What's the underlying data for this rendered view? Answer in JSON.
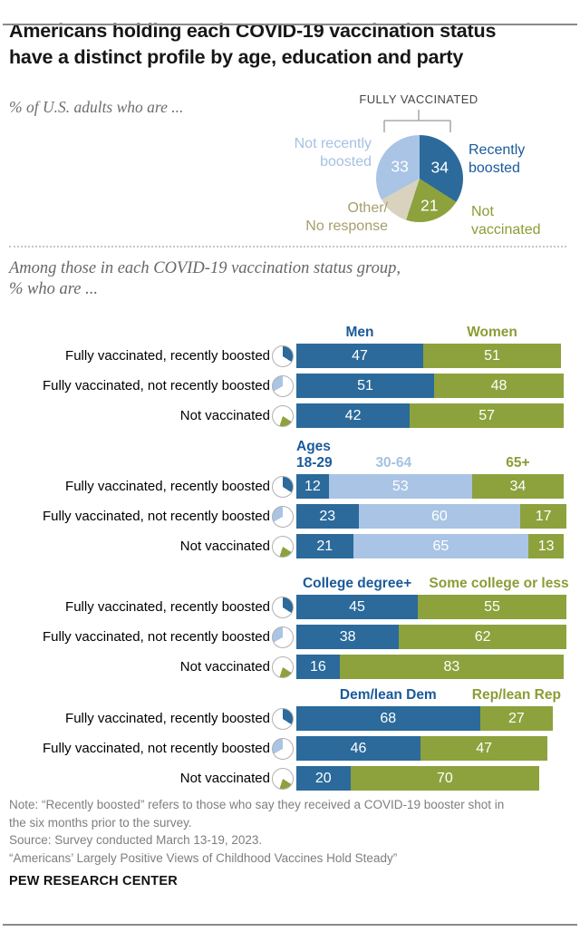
{
  "title_lines": [
    "Americans holding each COVID-19 vaccination status",
    "have a distinct profile by age, education and party"
  ],
  "colors": {
    "blue": "#2B6A9B",
    "lightblue": "#A9C4E4",
    "green": "#8DA23D",
    "tan": "#D8D2BE",
    "blue_text": "#1A5A9A",
    "lightblue_text": "#A5C1E2",
    "green_text": "#8A9D35",
    "tan_text": "#A79D6E"
  },
  "chart_data": [
    {
      "type": "pie",
      "title": "% of U.S. adults who are ...",
      "heading": "FULLY VACCINATED",
      "slices": [
        {
          "label": "Recently boosted",
          "label_lines": [
            "Recently",
            "boosted"
          ],
          "value": 34,
          "color_key": "blue",
          "value_shown": true
        },
        {
          "label": "Not vaccinated",
          "label_lines": [
            "Not",
            "vaccinated"
          ],
          "value": 21,
          "color_key": "green",
          "value_shown": true
        },
        {
          "label": "Other/No response",
          "label_lines": [
            "Other/",
            "No response"
          ],
          "value": 12,
          "color_key": "tan",
          "value_shown": false
        },
        {
          "label": "Not recently boosted",
          "label_lines": [
            "Not recently",
            "boosted"
          ],
          "value": 33,
          "color_key": "lightblue",
          "value_shown": true
        }
      ]
    },
    {
      "type": "bar",
      "stacked": true,
      "unit": "%",
      "xlim": [
        0,
        100
      ],
      "title_lines": [
        "Among those in each COVID-19 vaccination status group,",
        "% who are ..."
      ],
      "row_labels": [
        "Fully vaccinated, recently boosted",
        "Fully vaccinated, not recently boosted",
        "Not vaccinated"
      ],
      "groups": [
        {
          "name": "gender",
          "columns": [
            {
              "label": "Men",
              "color_key": "blue"
            },
            {
              "label": "Women",
              "color_key": "green"
            }
          ],
          "rows": [
            [
              47,
              51
            ],
            [
              51,
              48
            ],
            [
              42,
              57
            ]
          ]
        },
        {
          "name": "age",
          "columns": [
            {
              "label": "Ages\n18-29",
              "color_key": "blue"
            },
            {
              "label": "30-64",
              "color_key": "lightblue"
            },
            {
              "label": "65+",
              "color_key": "green"
            }
          ],
          "rows": [
            [
              12,
              53,
              34
            ],
            [
              23,
              60,
              17
            ],
            [
              21,
              65,
              13
            ]
          ]
        },
        {
          "name": "education",
          "columns": [
            {
              "label": "College degree+",
              "color_key": "blue"
            },
            {
              "label": "Some college or less",
              "color_key": "green"
            }
          ],
          "rows": [
            [
              45,
              55
            ],
            [
              38,
              62
            ],
            [
              16,
              83
            ]
          ]
        },
        {
          "name": "party",
          "columns": [
            {
              "label": "Dem/lean Dem",
              "color_key": "blue"
            },
            {
              "label": "Rep/lean Rep",
              "color_key": "green"
            }
          ],
          "rows": [
            [
              68,
              27
            ],
            [
              46,
              47
            ],
            [
              20,
              70
            ]
          ]
        }
      ]
    }
  ],
  "note_lines": [
    "Note: “Recently boosted” refers to those who say they received a COVID-19 booster shot in",
    "the six months prior to the survey.",
    "Source: Survey conducted March 13-19, 2023.",
    "“Americans’ Largely Positive Views of Childhood Vaccines Hold Steady”"
  ],
  "brand": "PEW RESEARCH CENTER"
}
